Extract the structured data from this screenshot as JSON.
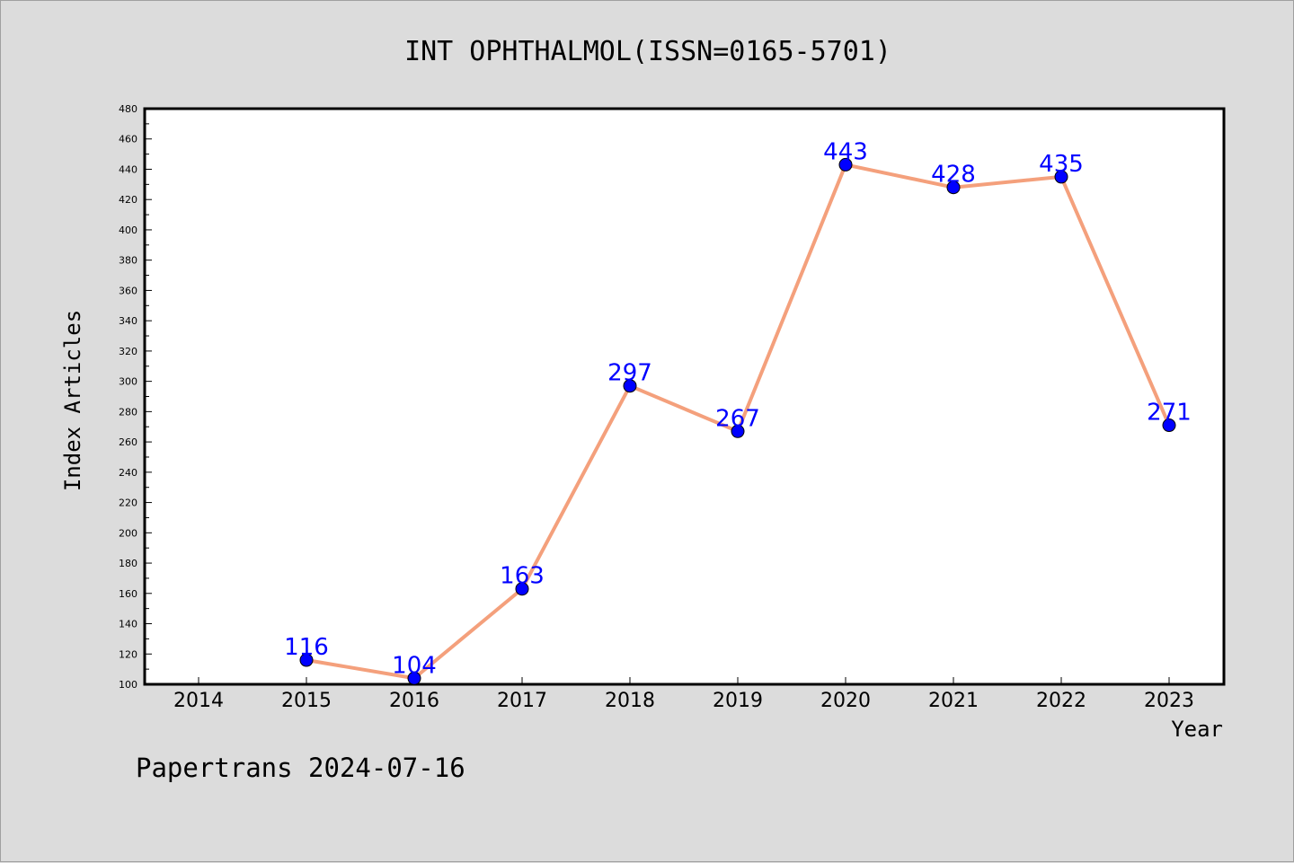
{
  "chart_data": {
    "type": "line",
    "title": "INT OPHTHALMOL(ISSN=0165-5701)",
    "xlabel": "Year",
    "ylabel": "Index Articles",
    "categories": [
      "2014",
      "2015",
      "2016",
      "2017",
      "2018",
      "2019",
      "2020",
      "2021",
      "2022",
      "2023"
    ],
    "series": [
      {
        "x": [
          "2015",
          "2016",
          "2017",
          "2018",
          "2019",
          "2020",
          "2021",
          "2022",
          "2023"
        ],
        "values": [
          116,
          104,
          163,
          297,
          267,
          443,
          428,
          435,
          271
        ],
        "data_labels": [
          "116",
          "104",
          "163",
          "297",
          "267",
          "443",
          "428",
          "435",
          "271"
        ]
      }
    ],
    "ylim": [
      100,
      480
    ],
    "y_ticks": [
      "100",
      "120",
      "140",
      "160",
      "180",
      "200",
      "220",
      "240",
      "260",
      "280",
      "300",
      "320",
      "340",
      "360",
      "380",
      "400",
      "420",
      "440",
      "460",
      "480"
    ],
    "grid": false,
    "legend": "none"
  },
  "footer": "Papertrans 2024-07-16",
  "colors": {
    "background": "#dcdcdc",
    "plot_background": "#ffffff",
    "line": "#f4a07c",
    "marker": "#0000ff",
    "data_label": "#0000ff"
  }
}
